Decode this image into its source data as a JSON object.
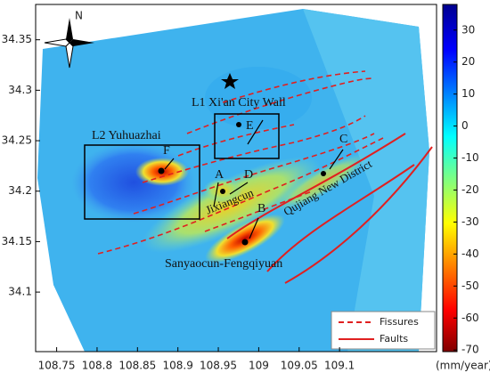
{
  "map": {
    "xlim": [
      108.724,
      109.22
    ],
    "ylim": [
      34.041,
      34.385
    ],
    "xticks": [
      108.75,
      108.8,
      108.85,
      108.9,
      108.95,
      109,
      109.05,
      109.1
    ],
    "yticks": [
      34.1,
      34.15,
      34.2,
      34.25,
      34.3,
      34.35
    ],
    "colorbar": {
      "lim": [
        -70.5,
        38
      ],
      "ticks": [
        30,
        20,
        10,
        0,
        -10,
        -20,
        -30,
        -40,
        -50,
        -60,
        -70
      ],
      "unit": "(mm/year)"
    },
    "compass": "N",
    "labels": {
      "l1": "L1 Xi'an City Wall",
      "l2": "L2 Yuhuazhai",
      "a": "A",
      "b": "B",
      "c": "C",
      "d": "D",
      "e": "E",
      "f": "F",
      "jixiangcun": "Jixiangcun",
      "qujiang": "Qujiang New District",
      "sanyaocun": "Sanyaocun-Fengqiyuan"
    },
    "legend": {
      "fissures": "Fissures",
      "faults": "Faults"
    }
  }
}
